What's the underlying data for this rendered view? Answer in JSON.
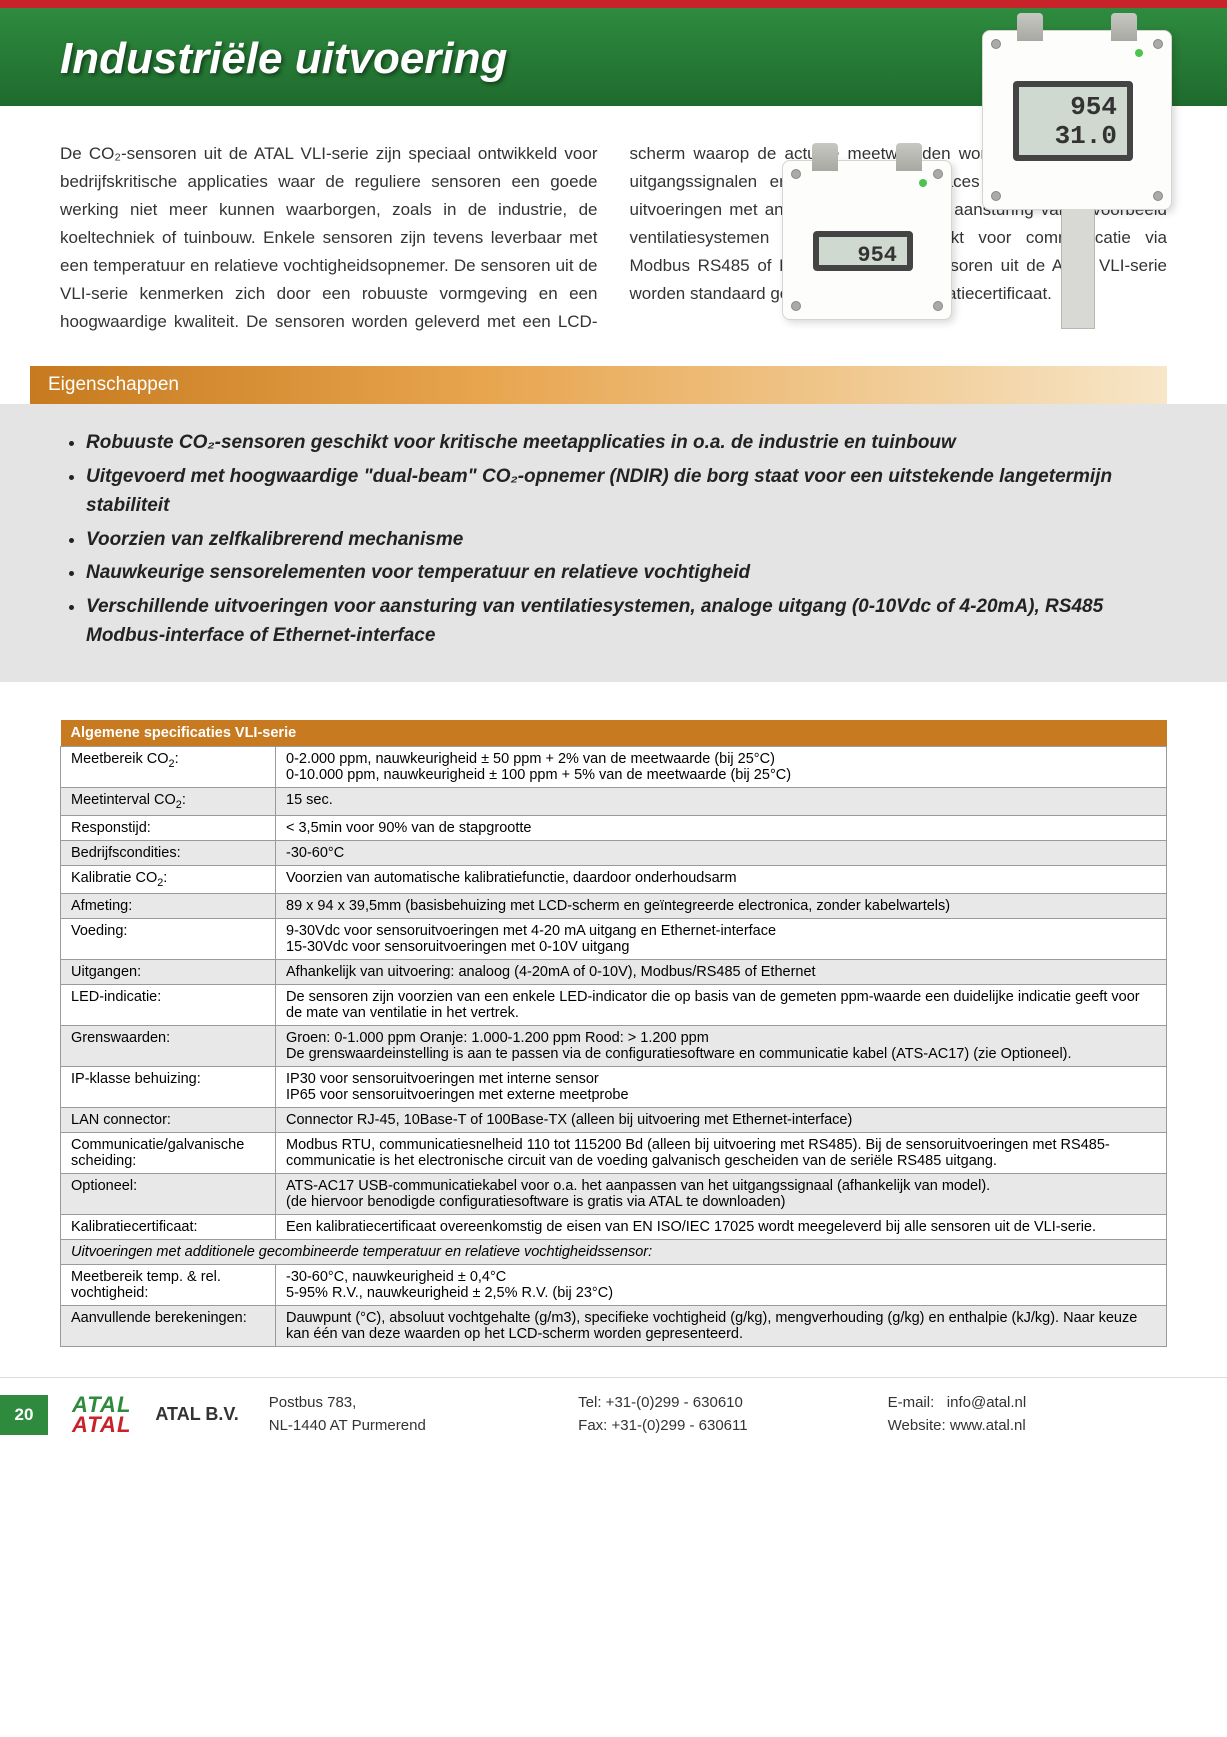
{
  "hero": {
    "title": "Industriële uitvoering"
  },
  "productDisplays": {
    "s1": "954",
    "s2_line1": "954",
    "s2_line2": "31.0"
  },
  "intro": "De CO₂-sensoren uit de ATAL VLI-serie zijn speciaal ontwikkeld voor bedrijfskritische applicaties waar de reguliere sensoren een goede werking niet meer kunnen waarborgen, zoals in de industrie, de koeltechniek of tuinbouw. Enkele sensoren zijn tevens leverbaar met een temperatuur en relatieve vochtigheidsopnemer. De sensoren uit de VLI-serie kenmerken zich door een robuuste vormgeving en een hoogwaardige kwaliteit. De sensoren worden geleverd met een LCD-scherm waarop de actuele meetwaarden worden gepresenteerd. De uitgangssignalen en communicatieinterfaces zijn legio; zo zijn er uitvoeringen met analoge uitgangen voor aansturing van bijvoorbeeld ventilatiesystemen en sensoren geschikt voor communicatie via Modbus RS485 of Ethernet. De CO₂-sensoren uit de ATAL VLI-serie worden standaard geleverd met een kalibratiecertificaat.",
  "propsHeader": "Eigenschappen",
  "props": [
    "Robuuste CO₂-sensoren geschikt voor kritische meetapplicaties in o.a. de industrie en tuinbouw",
    "Uitgevoerd met hoogwaardige \"dual-beam\" CO₂-opnemer (NDIR) die borg staat voor een uitstekende langetermijn stabiliteit",
    "Voorzien van zelfkalibrerend mechanisme",
    "Nauwkeurige sensorelementen voor  temperatuur en relatieve vochtigheid",
    "Verschillende uitvoeringen voor aansturing van ventilatiesystemen, analoge uitgang (0-10Vdc of 4-20mA), RS485 Modbus-interface of Ethernet-interface"
  ],
  "specTitle": "Algemene specificaties VLI-serie",
  "specRows": [
    {
      "shade": false,
      "label": "Meetbereik CO₂:",
      "value": "0-2.000 ppm, nauwkeurigheid ± 50 ppm + 2% van de meetwaarde (bij 25°C)\n0-10.000 ppm, nauwkeurigheid ± 100 ppm + 5% van de meetwaarde (bij 25°C)"
    },
    {
      "shade": true,
      "label": "Meetinterval CO₂:",
      "value": "15 sec."
    },
    {
      "shade": false,
      "label": "Responstijd:",
      "value": "< 3,5min voor 90% van de stapgrootte"
    },
    {
      "shade": true,
      "label": "Bedrijfscondities:",
      "value": "-30-60°C"
    },
    {
      "shade": false,
      "label": "Kalibratie CO₂:",
      "value": "Voorzien van automatische kalibratiefunctie, daardoor onderhoudsarm"
    },
    {
      "shade": true,
      "label": "Afmeting:",
      "value": "89 x 94 x 39,5mm (basisbehuizing met LCD-scherm en geïntegreerde electronica, zonder kabelwartels)"
    },
    {
      "shade": false,
      "label": "Voeding:",
      "value": "9-30Vdc voor sensoruitvoeringen met 4-20 mA uitgang en Ethernet-interface\n15-30Vdc voor sensoruitvoeringen met 0-10V uitgang"
    },
    {
      "shade": true,
      "label": "Uitgangen:",
      "value": "Afhankelijk van uitvoering: analoog (4-20mA of 0-10V), Modbus/RS485 of Ethernet"
    },
    {
      "shade": false,
      "label": "LED-indicatie:",
      "value": "De sensoren zijn voorzien van een enkele LED-indicator die op basis van de gemeten ppm-waarde een duidelijke indicatie geeft voor de mate van ventilatie in het vertrek."
    },
    {
      "shade": true,
      "label": "Grenswaarden:",
      "value": "Groen: 0-1.000 ppm     Oranje: 1.000-1.200 ppm     Rood: > 1.200 ppm\nDe grenswaardeinstelling is aan te passen via de configuratiesoftware en communicatie kabel (ATS-AC17) (zie Optioneel)."
    },
    {
      "shade": false,
      "label": "IP-klasse behuizing:",
      "value": "IP30 voor sensoruitvoeringen met interne sensor\nIP65 voor sensoruitvoeringen met externe meetprobe"
    },
    {
      "shade": true,
      "label": "LAN connector:",
      "value": "Connector RJ-45, 10Base-T of 100Base-TX (alleen bij uitvoering met Ethernet-interface)"
    },
    {
      "shade": false,
      "label": "Communicatie/galvanische scheiding:",
      "value": "Modbus RTU, communicatiesnelheid 110 tot 115200 Bd (alleen bij uitvoering met RS485). Bij de sensoruitvoeringen met RS485-communicatie is het electronische circuit van de voeding galvanisch gescheiden van de seriële RS485 uitgang."
    },
    {
      "shade": true,
      "label": "Optioneel:",
      "value": "ATS-AC17 USB-communicatiekabel voor o.a. het aanpassen van het uitgangssignaal (afhankelijk van model).\n(de hiervoor benodigde configuratiesoftware is gratis via ATAL te downloaden)"
    },
    {
      "shade": false,
      "label": "Kalibratiecertificaat:",
      "value": "Een kalibratiecertificaat overeenkomstig de eisen van EN ISO/IEC 17025 wordt meegeleverd bij alle sensoren uit de VLI-serie."
    }
  ],
  "specSubHeader": "Uitvoeringen met additionele gecombineerde temperatuur en relatieve vochtigheidssensor:",
  "specRows2": [
    {
      "shade": false,
      "label": "Meetbereik temp. & rel. vochtigheid:",
      "value": "-30-60°C, nauwkeurigheid ± 0,4°C\n5-95% R.V., nauwkeurigheid ± 2,5% R.V. (bij 23°C)"
    },
    {
      "shade": true,
      "label": "Aanvullende berekeningen:",
      "value": "Dauwpunt (°C), absoluut vochtgehalte (g/m3), specifieke vochtigheid (g/kg), mengverhouding (g/kg) en enthalpie (kJ/kg). Naar keuze kan één van deze waarden op het LCD-scherm worden gepresenteerd."
    }
  ],
  "footer": {
    "page": "20",
    "logo1": "ATAL",
    "logo2": "ATAL",
    "company": "ATAL B.V.",
    "addr1": "Postbus 783,",
    "addr2": "NL-1440 AT  Purmerend",
    "tel": "Tel:   +31-(0)299 - 630610",
    "fax": "Fax:  +31-(0)299 - 630611",
    "emailLabel": "E-mail:",
    "email": "info@atal.nl",
    "webLabel": "Website:",
    "web": "www.atal.nl"
  }
}
